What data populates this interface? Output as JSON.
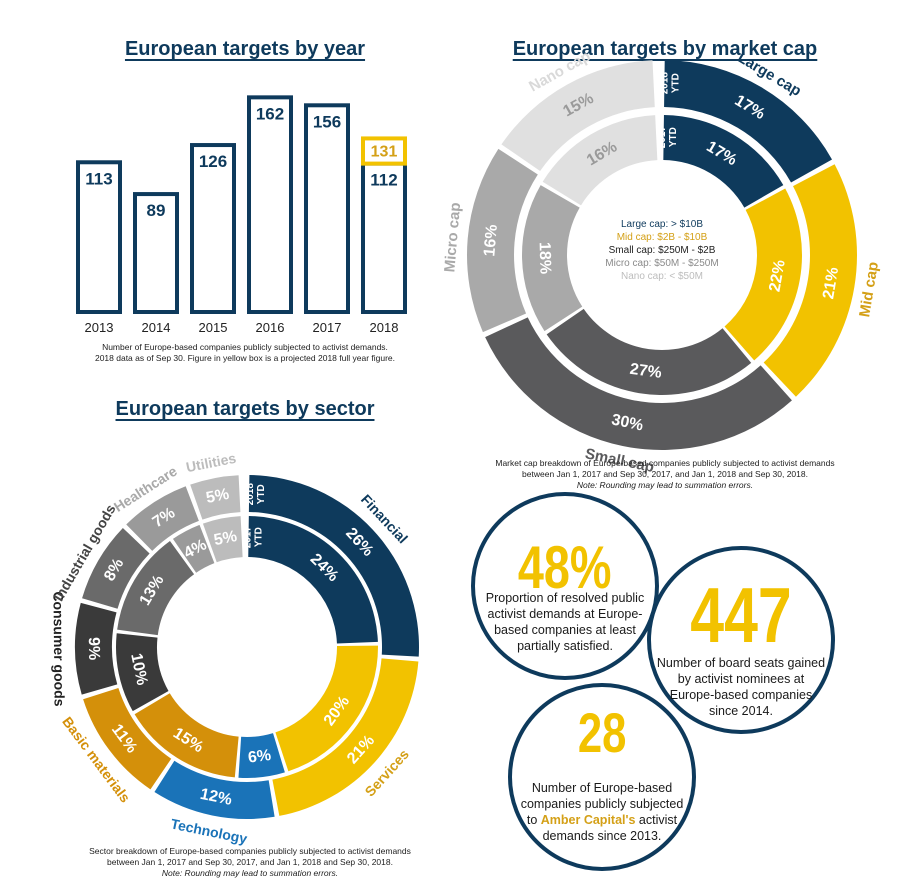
{
  "year_section": {
    "title": "European targets by year",
    "caption_line1": "Number of Europe-based companies publicly subjected to activist demands.",
    "caption_line2": "2018 data as of Sep 30. Figure in yellow box is a projected 2018 full year figure."
  },
  "cap_section": {
    "title": "European targets by market cap",
    "caption_line1": "Market cap breakdown of Europe-based companies publicly subjected to activist demands",
    "caption_line2": "between Jan 1, 2017 and Sep 30, 2017, and Jan 1, 2018 and Sep 30, 2018.",
    "note": "Note: Rounding may lead to summation errors.",
    "legend": [
      {
        "text": "Large cap: > $10B",
        "color": "#0e3a5c"
      },
      {
        "text": "Mid cap: $2B - $10B",
        "color": "#d4a017"
      },
      {
        "text": "Small cap: $250M - $2B",
        "color": "#222222"
      },
      {
        "text": "Micro cap: $50M - $250M",
        "color": "#8a8a8a"
      },
      {
        "text": "Nano cap: < $50M",
        "color": "#bdbdbd"
      }
    ]
  },
  "sector_section": {
    "title": "European targets by sector",
    "caption_line1": "Sector breakdown of Europe-based companies publicly subjected to activist demands",
    "caption_line2": "between Jan 1, 2017 and Sep 30, 2017, and Jan 1, 2018 and Sep 30, 2018.",
    "note": "Note: Rounding may lead to summation errors."
  },
  "stats": [
    {
      "value": "48%",
      "text": [
        "Proportion of resolved public",
        "activist demands at Europe-",
        "based companies at least",
        "partially satisfied."
      ]
    },
    {
      "value": "447",
      "text": [
        "Number of board seats gained",
        "by activist nominees at",
        "Europe-based companies",
        "since 2014."
      ]
    },
    {
      "value": "28",
      "text_before": [
        "Number of Europe-based",
        "companies publicly subjected"
      ],
      "text_to": "to ",
      "highlight": "Amber Capital's",
      "text_after_hl": " activist",
      "text_last": "demands since 2013."
    }
  ],
  "chart_data": [
    {
      "type": "bar",
      "title": "European targets by year",
      "categories": [
        "2013",
        "2014",
        "2015",
        "2016",
        "2017",
        "2018"
      ],
      "values": [
        113,
        89,
        126,
        162,
        156,
        112
      ],
      "projected": {
        "category": "2018",
        "value": 131
      },
      "colors": {
        "bar_outline": "#0e3a5c",
        "projected_outline": "#f2c200"
      }
    },
    {
      "type": "pie",
      "title": "European targets by market cap",
      "rings": [
        "2018 YTD",
        "2017 YTD"
      ],
      "categories": [
        "Large cap",
        "Mid cap",
        "Small cap",
        "Micro cap",
        "Nano cap"
      ],
      "series": [
        {
          "name": "2018 YTD",
          "values": [
            17,
            21,
            30,
            16,
            15
          ]
        },
        {
          "name": "2017 YTD",
          "values": [
            17,
            22,
            27,
            18,
            16
          ]
        }
      ],
      "colors": [
        "#0e3a5c",
        "#f2c200",
        "#5a5a5c",
        "#a9a9a9",
        "#e0e0e0"
      ]
    },
    {
      "type": "pie",
      "title": "European targets by sector",
      "rings": [
        "2018 YTD",
        "2017 YTD"
      ],
      "categories": [
        "Financial",
        "Services",
        "Technology",
        "Basic materials",
        "Consumer goods",
        "Industrial goods",
        "Healthcare",
        "Utilities"
      ],
      "series": [
        {
          "name": "2018 YTD",
          "values": [
            26,
            21,
            12,
            11,
            9,
            8,
            7,
            5
          ]
        },
        {
          "name": "2017 YTD",
          "values": [
            24,
            20,
            6,
            15,
            10,
            13,
            4,
            5
          ]
        }
      ],
      "colors": [
        "#0e3a5c",
        "#f2c200",
        "#1a73b8",
        "#d4900a",
        "#3a3a3a",
        "#6a6a6a",
        "#9a9a9a",
        "#bcbcbc"
      ]
    }
  ]
}
